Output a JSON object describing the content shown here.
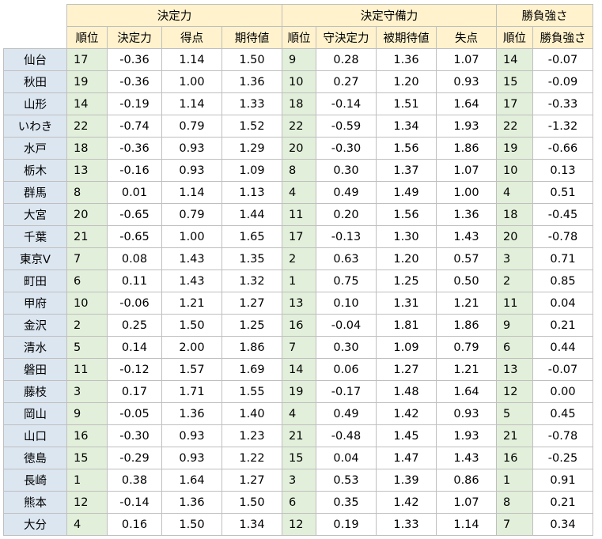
{
  "groups": [
    "決定力",
    "決定守備力",
    "勝負強さ"
  ],
  "subheaders": {
    "g1": [
      "順位",
      "決定力",
      "得点",
      "期待値"
    ],
    "g2": [
      "順位",
      "守決定力",
      "被期待値",
      "失点"
    ],
    "g3": [
      "順位",
      "勝負強さ"
    ]
  },
  "rows": [
    [
      "仙台",
      "17",
      "-0.36",
      "1.14",
      "1.50",
      "9",
      "0.28",
      "1.36",
      "1.07",
      "14",
      "-0.07"
    ],
    [
      "秋田",
      "19",
      "-0.36",
      "1.00",
      "1.36",
      "10",
      "0.27",
      "1.20",
      "0.93",
      "15",
      "-0.09"
    ],
    [
      "山形",
      "14",
      "-0.19",
      "1.14",
      "1.33",
      "18",
      "-0.14",
      "1.51",
      "1.64",
      "17",
      "-0.33"
    ],
    [
      "いわき",
      "22",
      "-0.74",
      "0.79",
      "1.52",
      "22",
      "-0.59",
      "1.34",
      "1.93",
      "22",
      "-1.32"
    ],
    [
      "水戸",
      "18",
      "-0.36",
      "0.93",
      "1.29",
      "20",
      "-0.30",
      "1.56",
      "1.86",
      "19",
      "-0.66"
    ],
    [
      "栃木",
      "13",
      "-0.16",
      "0.93",
      "1.09",
      "8",
      "0.30",
      "1.37",
      "1.07",
      "10",
      "0.13"
    ],
    [
      "群馬",
      "8",
      "0.01",
      "1.14",
      "1.13",
      "4",
      "0.49",
      "1.49",
      "1.00",
      "4",
      "0.51"
    ],
    [
      "大宮",
      "20",
      "-0.65",
      "0.79",
      "1.44",
      "11",
      "0.20",
      "1.56",
      "1.36",
      "18",
      "-0.45"
    ],
    [
      "千葉",
      "21",
      "-0.65",
      "1.00",
      "1.65",
      "17",
      "-0.13",
      "1.30",
      "1.43",
      "20",
      "-0.78"
    ],
    [
      "東京V",
      "7",
      "0.08",
      "1.43",
      "1.35",
      "2",
      "0.63",
      "1.20",
      "0.57",
      "3",
      "0.71"
    ],
    [
      "町田",
      "6",
      "0.11",
      "1.43",
      "1.32",
      "1",
      "0.75",
      "1.25",
      "0.50",
      "2",
      "0.85"
    ],
    [
      "甲府",
      "10",
      "-0.06",
      "1.21",
      "1.27",
      "13",
      "0.10",
      "1.31",
      "1.21",
      "11",
      "0.04"
    ],
    [
      "金沢",
      "2",
      "0.25",
      "1.50",
      "1.25",
      "16",
      "-0.04",
      "1.81",
      "1.86",
      "9",
      "0.21"
    ],
    [
      "清水",
      "5",
      "0.14",
      "2.00",
      "1.86",
      "7",
      "0.30",
      "1.09",
      "0.79",
      "6",
      "0.44"
    ],
    [
      "磐田",
      "11",
      "-0.12",
      "1.57",
      "1.69",
      "14",
      "0.06",
      "1.27",
      "1.21",
      "13",
      "-0.07"
    ],
    [
      "藤枝",
      "3",
      "0.17",
      "1.71",
      "1.55",
      "19",
      "-0.17",
      "1.48",
      "1.64",
      "12",
      "0.00"
    ],
    [
      "岡山",
      "9",
      "-0.05",
      "1.36",
      "1.40",
      "4",
      "0.49",
      "1.42",
      "0.93",
      "5",
      "0.45"
    ],
    [
      "山口",
      "16",
      "-0.30",
      "0.93",
      "1.23",
      "21",
      "-0.48",
      "1.45",
      "1.93",
      "21",
      "-0.78"
    ],
    [
      "徳島",
      "15",
      "-0.29",
      "0.93",
      "1.22",
      "15",
      "0.04",
      "1.47",
      "1.43",
      "16",
      "-0.25"
    ],
    [
      "長崎",
      "1",
      "0.38",
      "1.64",
      "1.27",
      "3",
      "0.53",
      "1.39",
      "0.86",
      "1",
      "0.91"
    ],
    [
      "熊本",
      "12",
      "-0.14",
      "1.36",
      "1.50",
      "6",
      "0.35",
      "1.42",
      "1.07",
      "8",
      "0.21"
    ],
    [
      "大分",
      "4",
      "0.16",
      "1.50",
      "1.34",
      "12",
      "0.19",
      "1.33",
      "1.14",
      "7",
      "0.34"
    ]
  ]
}
